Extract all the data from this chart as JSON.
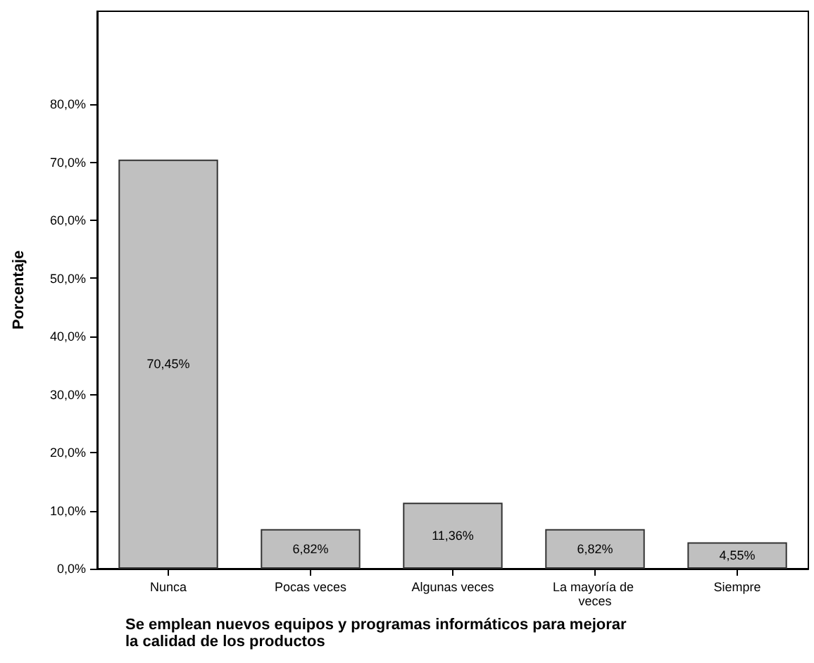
{
  "chart_data": {
    "type": "bar",
    "xlabel": "Se emplean nuevos equipos y programas informáticos para mejorar la calidad de los productos",
    "ylabel": "Porcentaje",
    "categories": [
      "Nunca",
      "Pocas veces",
      "Algunas veces",
      "La mayoría de veces",
      "Siempre"
    ],
    "values": [
      70.45,
      6.82,
      11.36,
      6.82,
      4.55
    ],
    "value_labels": [
      "70,45%",
      "6,82%",
      "11,36%",
      "6,82%",
      "4,55%"
    ],
    "color": "#c0c0c0",
    "ylim": [
      0,
      96
    ],
    "yticks": [
      {
        "value": 0,
        "label": "0,0%"
      },
      {
        "value": 10,
        "label": "10,0%"
      },
      {
        "value": 20,
        "label": "20,0%"
      },
      {
        "value": 30,
        "label": "30,0%"
      },
      {
        "value": 40,
        "label": "40,0%"
      },
      {
        "value": 50,
        "label": "50,0%"
      },
      {
        "value": 60,
        "label": "60,0%"
      },
      {
        "value": 70,
        "label": "70,0%"
      },
      {
        "value": 80,
        "label": "80,0%"
      }
    ],
    "grid": false
  }
}
